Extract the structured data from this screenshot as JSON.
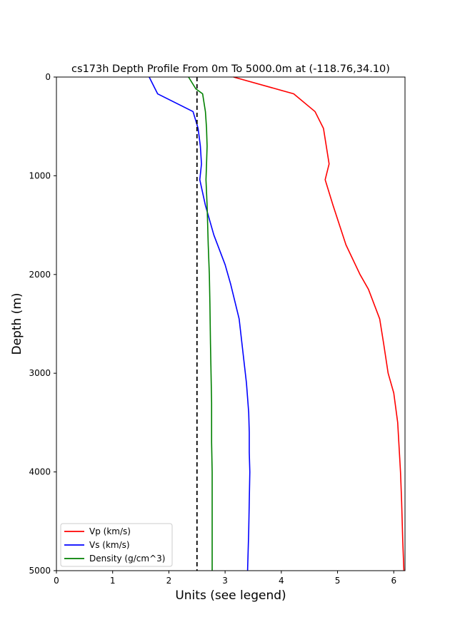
{
  "chart_data": {
    "type": "line",
    "title": "cs173h Depth Profile From 0m To 5000.0m at (-118.76,34.10)",
    "xlabel": "Units (see legend)",
    "ylabel": "Depth (m)",
    "xlim": [
      0,
      6.2
    ],
    "ylim": [
      5000,
      0
    ],
    "y_inverted": true,
    "xticks": [
      "0",
      "1",
      "2",
      "3",
      "4",
      "5",
      "6"
    ],
    "yticks": [
      "0",
      "1000",
      "2000",
      "3000",
      "4000",
      "5000"
    ],
    "grid": false,
    "legend_position": "lower-left",
    "reference_line": {
      "x": 2.5,
      "style": "dashed",
      "color": "#000000"
    },
    "series": [
      {
        "name": "Vp (km/s)",
        "color": "#ff0000",
        "points": [
          [
            3.15,
            0
          ],
          [
            4.22,
            170
          ],
          [
            4.6,
            350
          ],
          [
            4.75,
            520
          ],
          [
            4.8,
            700
          ],
          [
            4.85,
            880
          ],
          [
            4.78,
            1040
          ],
          [
            4.92,
            1300
          ],
          [
            5.15,
            1700
          ],
          [
            5.4,
            2000
          ],
          [
            5.55,
            2150
          ],
          [
            5.75,
            2450
          ],
          [
            5.82,
            2700
          ],
          [
            5.9,
            3000
          ],
          [
            6.0,
            3200
          ],
          [
            6.07,
            3500
          ],
          [
            6.1,
            3800
          ],
          [
            6.12,
            4000
          ],
          [
            6.14,
            4300
          ],
          [
            6.16,
            4700
          ],
          [
            6.18,
            5000
          ]
        ]
      },
      {
        "name": "Vs (km/s)",
        "color": "#0000ff",
        "points": [
          [
            1.65,
            0
          ],
          [
            1.8,
            170
          ],
          [
            2.43,
            350
          ],
          [
            2.52,
            520
          ],
          [
            2.56,
            700
          ],
          [
            2.58,
            880
          ],
          [
            2.55,
            1040
          ],
          [
            2.65,
            1300
          ],
          [
            2.8,
            1600
          ],
          [
            3.0,
            1900
          ],
          [
            3.1,
            2100
          ],
          [
            3.25,
            2450
          ],
          [
            3.3,
            2700
          ],
          [
            3.38,
            3100
          ],
          [
            3.42,
            3400
          ],
          [
            3.43,
            3600
          ],
          [
            3.43,
            3800
          ],
          [
            3.44,
            4000
          ],
          [
            3.43,
            4300
          ],
          [
            3.42,
            4600
          ],
          [
            3.4,
            5000
          ]
        ]
      },
      {
        "name": "Density (g/cm^3)",
        "color": "#008000",
        "points": [
          [
            2.35,
            0
          ],
          [
            2.48,
            120
          ],
          [
            2.6,
            170
          ],
          [
            2.65,
            350
          ],
          [
            2.67,
            520
          ],
          [
            2.68,
            700
          ],
          [
            2.67,
            880
          ],
          [
            2.66,
            1040
          ],
          [
            2.68,
            1300
          ],
          [
            2.7,
            1700
          ],
          [
            2.72,
            2000
          ],
          [
            2.73,
            2300
          ],
          [
            2.74,
            2700
          ],
          [
            2.75,
            3000
          ],
          [
            2.76,
            3300
          ],
          [
            2.76,
            3700
          ],
          [
            2.77,
            4000
          ],
          [
            2.77,
            4500
          ],
          [
            2.77,
            5000
          ]
        ]
      }
    ]
  }
}
